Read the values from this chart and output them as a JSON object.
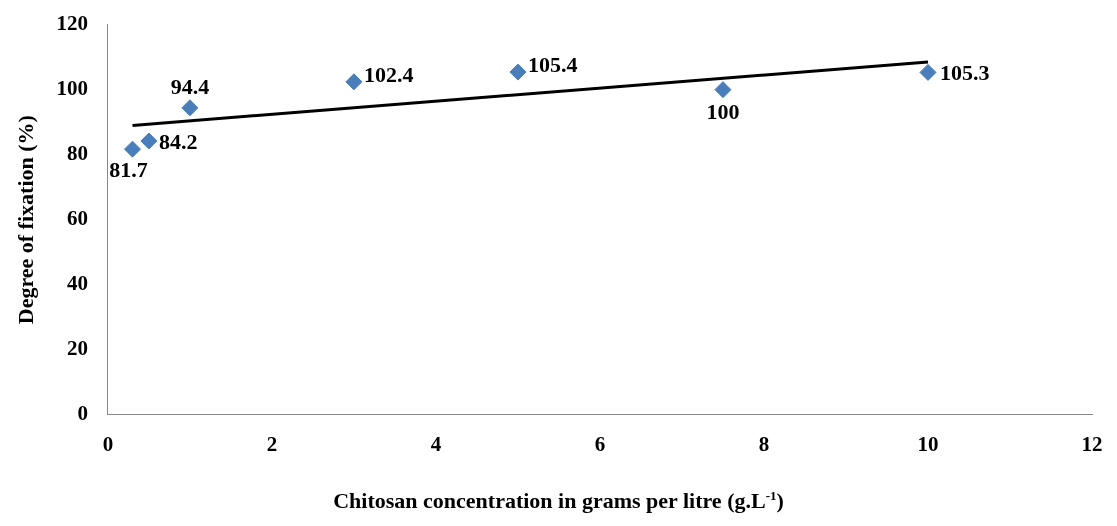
{
  "chart_data": {
    "type": "scatter",
    "xlabel": "Chitosan concentration in grams per litre (g.L$^{-1}$)",
    "ylabel": "Degree of fixation (%)",
    "series": [
      {
        "color": "#4a7ebb",
        "x": [
          0.3,
          0.5,
          1,
          3,
          5,
          7.5,
          10
        ],
        "values": [
          81.7,
          84.2,
          94.4,
          102.4,
          105.4,
          100,
          105.3
        ],
        "value_labels": [
          "81.7",
          "84.2",
          "94.4",
          "102.4",
          "105.4",
          "100",
          "105.3"
        ]
      },
      {
        "type": "line",
        "marker": "none",
        "color": "#000000",
        "x": [
          0.3,
          10
        ],
        "values": [
          89,
          108.5
        ]
      }
    ],
    "marker": "diamond",
    "xlim": [
      0,
      12
    ],
    "xticks": [
      0,
      2,
      4,
      6,
      8,
      10,
      12
    ],
    "ylim": [
      0,
      120
    ],
    "yticks": [
      0,
      20,
      40,
      60,
      80,
      100,
      120
    ],
    "grid": false,
    "legend": false
  }
}
